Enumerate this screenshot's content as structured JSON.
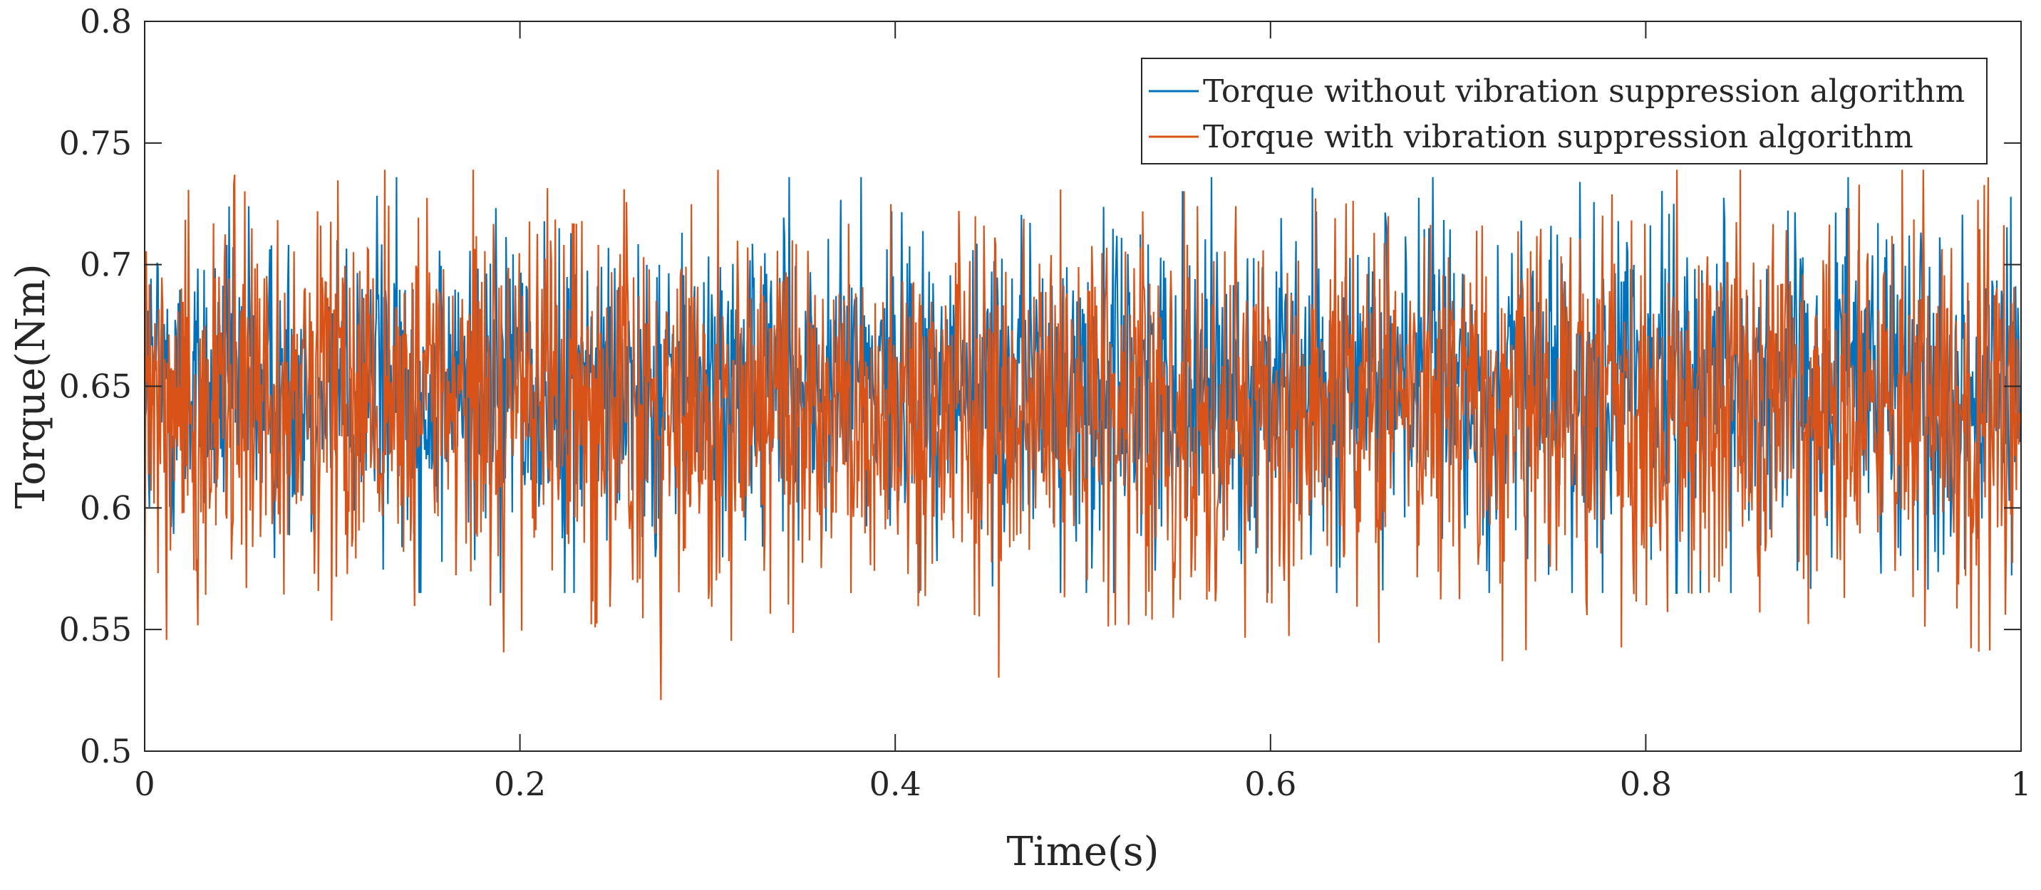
{
  "chart_data": {
    "type": "line",
    "title": "",
    "xlabel": "Time(s)",
    "ylabel": "Torque(Nm)",
    "xlim": [
      0,
      1
    ],
    "ylim": [
      0.5,
      0.8
    ],
    "xticks": [
      0,
      0.2,
      0.4,
      0.6,
      0.8,
      1
    ],
    "xtick_labels": [
      "0",
      "0.2",
      "0.4",
      "0.6",
      "0.8",
      "1"
    ],
    "yticks": [
      0.5,
      0.55,
      0.6,
      0.65,
      0.7,
      0.75,
      0.8
    ],
    "ytick_labels": [
      "0.5",
      "0.55",
      "0.6",
      "0.65",
      "0.7",
      "0.75",
      "0.8"
    ],
    "grid": false,
    "legend_position": "top-right",
    "series": [
      {
        "name": "Torque without vibration suppression algorithm",
        "color": "#0072BD",
        "mean": 0.65,
        "range": [
          0.565,
          0.736
        ],
        "sample_points": [
          [
            0.0,
            0.66
          ],
          [
            0.05,
            0.64
          ],
          [
            0.1,
            0.68
          ],
          [
            0.15,
            0.62
          ],
          [
            0.2,
            0.66
          ],
          [
            0.25,
            0.63
          ],
          [
            0.3,
            0.67
          ],
          [
            0.35,
            0.64
          ],
          [
            0.382,
            0.736
          ],
          [
            0.4,
            0.65
          ],
          [
            0.45,
            0.61
          ],
          [
            0.5,
            0.66
          ],
          [
            0.55,
            0.63
          ],
          [
            0.6,
            0.67
          ],
          [
            0.65,
            0.62
          ],
          [
            0.7,
            0.66
          ],
          [
            0.765,
            0.734
          ],
          [
            0.8,
            0.64
          ],
          [
            0.85,
            0.66
          ],
          [
            0.9,
            0.62
          ],
          [
            0.95,
            0.67
          ],
          [
            1.0,
            0.63
          ]
        ]
      },
      {
        "name": "Torque with vibration suppression algorithm",
        "color": "#D95319",
        "mean": 0.64,
        "range": [
          0.521,
          0.739
        ],
        "sample_points": [
          [
            0.0,
            0.55
          ],
          [
            0.048,
            0.737
          ],
          [
            0.1,
            0.62
          ],
          [
            0.128,
            0.739
          ],
          [
            0.15,
            0.64
          ],
          [
            0.2,
            0.66
          ],
          [
            0.25,
            0.62
          ],
          [
            0.275,
            0.521
          ],
          [
            0.3,
            0.65
          ],
          [
            0.35,
            0.63
          ],
          [
            0.4,
            0.66
          ],
          [
            0.45,
            0.61
          ],
          [
            0.5,
            0.65
          ],
          [
            0.55,
            0.63
          ],
          [
            0.6,
            0.66
          ],
          [
            0.65,
            0.62
          ],
          [
            0.7,
            0.65
          ],
          [
            0.75,
            0.64
          ],
          [
            0.8,
            0.66
          ],
          [
            0.85,
            0.62
          ],
          [
            0.9,
            0.65
          ],
          [
            0.95,
            0.63
          ],
          [
            1.0,
            0.64
          ]
        ]
      }
    ]
  }
}
